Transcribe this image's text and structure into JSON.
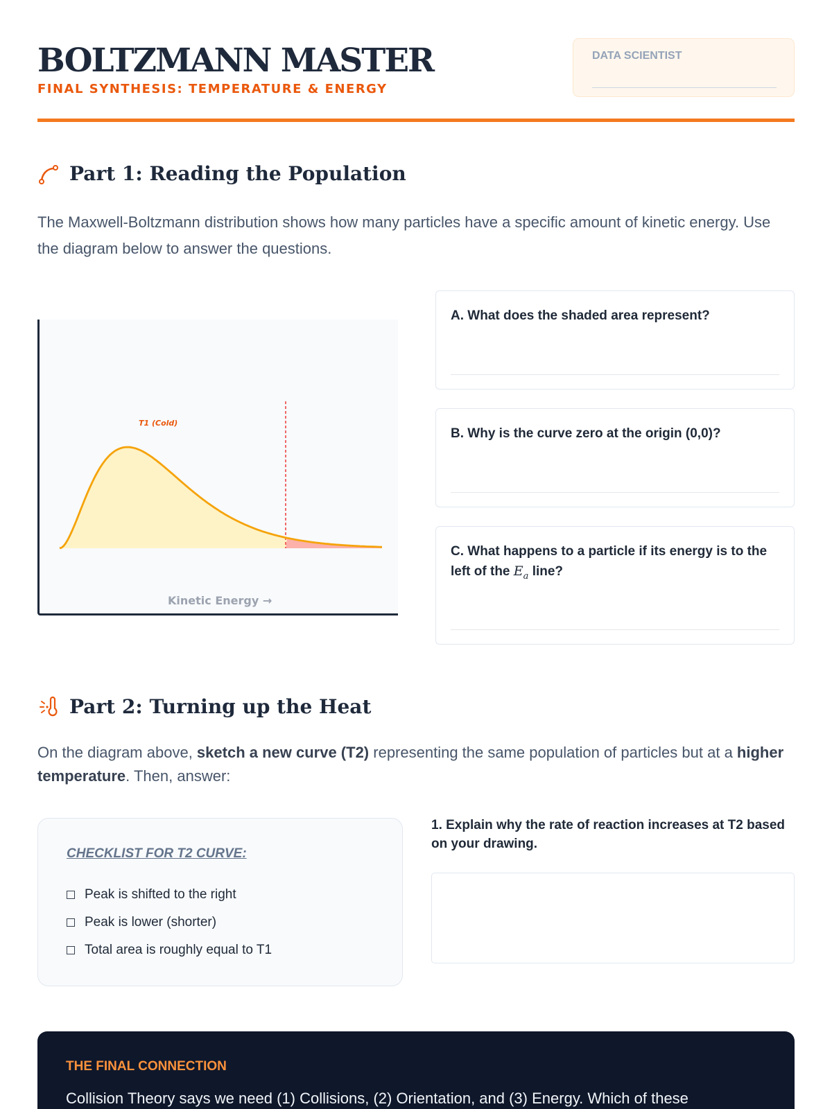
{
  "header": {
    "title": "BOLTZMANN MASTER",
    "subtitle": "FINAL SYNTHESIS: TEMPERATURE & ENERGY",
    "name_label": "DATA SCIENTIST"
  },
  "part1": {
    "heading": "Part 1: Reading the Population",
    "intro": "The Maxwell-Boltzmann distribution shows how many particles have a specific amount of kinetic energy. Use the diagram below to answer the questions.",
    "questions": [
      {
        "label": "A. What does the shaded area represent?"
      },
      {
        "label": "B. Why is the curve zero at the origin (0,0)?"
      },
      {
        "label_pre": "C. What happens to a particle if its energy is to the left of the ",
        "label_var": "E",
        "label_sub": "a",
        "label_post": " line?"
      }
    ]
  },
  "diagram": {
    "curve_label": "T1 (Cold)",
    "xlabel": "Kinetic Energy →",
    "colors": {
      "curve": "#f5a30a",
      "fill": "#fef3c7",
      "tail": "#fca5a5",
      "threshold": "#ef4444",
      "label": "#ea580c"
    }
  },
  "part2": {
    "heading": "Part 2: Turning up the Heat",
    "intro_pre": "On the diagram above, ",
    "intro_b1": "sketch a new curve (T2)",
    "intro_mid": " representing the same population of particles but at a ",
    "intro_b2": "higher temperature",
    "intro_post": ". Then, answer:",
    "checklist_title": "CHECKLIST FOR T2 CURVE:",
    "checklist": [
      "Peak is shifted to the right",
      "Peak is lower (shorter)",
      "Total area is roughly equal to T1"
    ],
    "question1": "1. Explain why the rate of reaction increases at T2 based on your drawing."
  },
  "final": {
    "title": "THE FINAL CONNECTION",
    "text": "Collision Theory says we need (1) Collisions, (2) Orientation, and (3) Energy. Which of these"
  }
}
